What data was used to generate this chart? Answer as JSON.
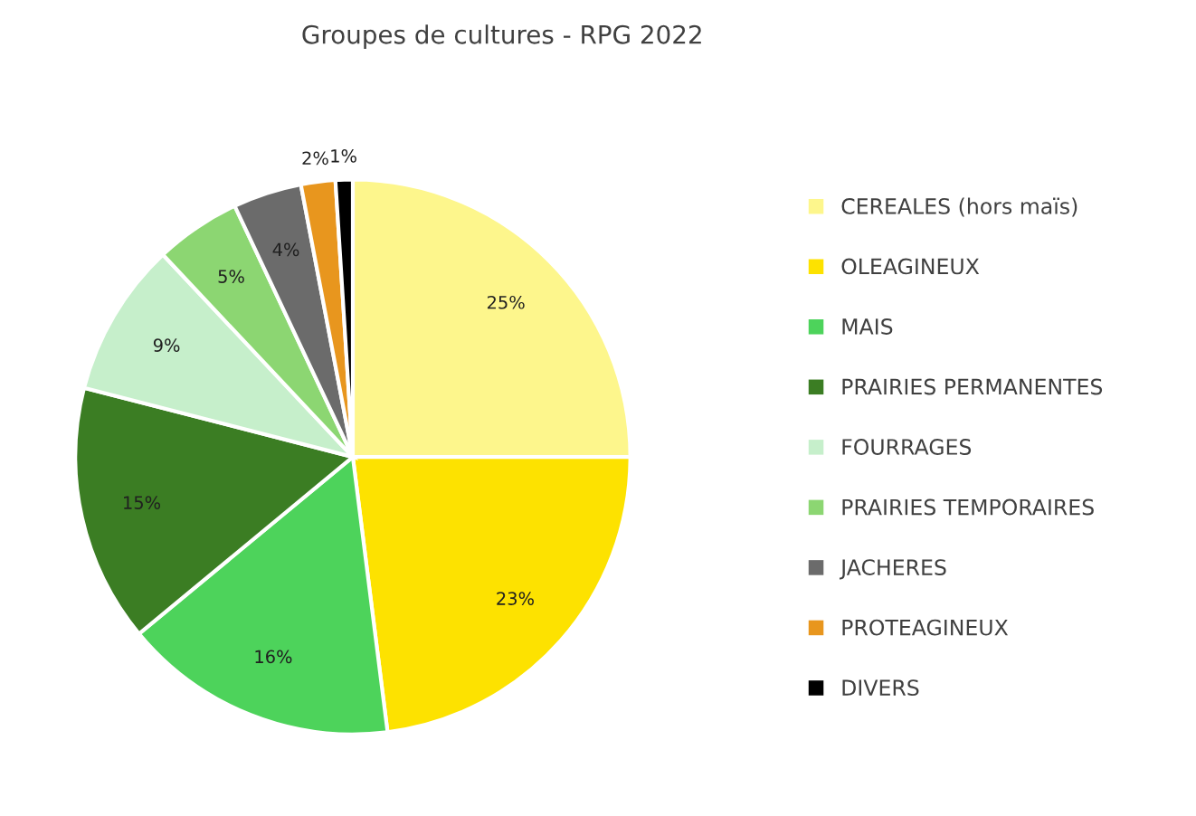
{
  "chart_data": {
    "type": "pie",
    "title": "Groupes de cultures - RPG 2022",
    "categories": [
      "CEREALES (hors maïs)",
      "OLEAGINEUX",
      "MAIS",
      "PRAIRIES PERMANENTES",
      "FOURRAGES",
      "PRAIRIES TEMPORAIRES",
      "JACHERES",
      "PROTEAGINEUX",
      "DIVERS"
    ],
    "values": [
      25,
      23,
      16,
      15,
      9,
      5,
      4,
      2,
      1
    ],
    "value_labels": [
      "25%",
      "23%",
      "16%",
      "15%",
      "9%",
      "5%",
      "4%",
      "2%",
      "1%"
    ],
    "colors": [
      "#fdf68c",
      "#fde200",
      "#4dd35b",
      "#3b7d23",
      "#c6efcb",
      "#8cd672",
      "#6b6b6b",
      "#e8961e",
      "#000000"
    ],
    "legend": "right"
  }
}
